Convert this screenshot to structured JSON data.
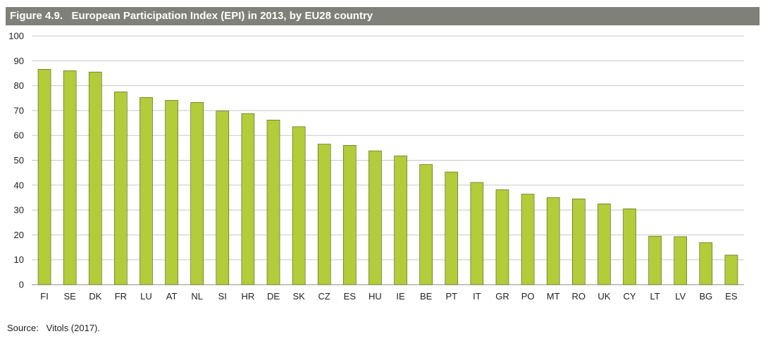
{
  "figure": {
    "title": "Figure 4.9.   European Participation Index (EPI) in 2013, by EU28 country",
    "source": "Source:   Vitols (2017)."
  },
  "colors": {
    "title_bar": "#7f8078",
    "bar_fill": "#b2cc3a",
    "bar_stroke": "#4f5a18",
    "grid": "#c8c8c8"
  },
  "chart_data": {
    "type": "bar",
    "categories": [
      "FI",
      "SE",
      "DK",
      "FR",
      "LU",
      "AT",
      "NL",
      "SI",
      "HR",
      "DE",
      "SK",
      "CZ",
      "ES",
      "HU",
      "IE",
      "BE",
      "PT",
      "IT",
      "GR",
      "PO",
      "MT",
      "RO",
      "UK",
      "CY",
      "LT",
      "LV",
      "BG",
      "ES"
    ],
    "values": [
      86.6,
      86.0,
      85.5,
      77.5,
      75.3,
      74.1,
      73.3,
      69.8,
      68.8,
      66.2,
      63.5,
      56.5,
      56.0,
      53.8,
      51.8,
      48.3,
      45.3,
      41.1,
      38.2,
      36.4,
      35.0,
      34.5,
      32.5,
      30.5,
      19.5,
      19.3,
      16.9,
      11.9
    ],
    "yticks": [
      0,
      10,
      20,
      30,
      40,
      50,
      60,
      70,
      80,
      90,
      100
    ],
    "ylim": [
      0,
      100
    ],
    "grid": true,
    "title": "European Participation Index (EPI) in 2013, by EU28 country",
    "xlabel": "",
    "ylabel": ""
  }
}
